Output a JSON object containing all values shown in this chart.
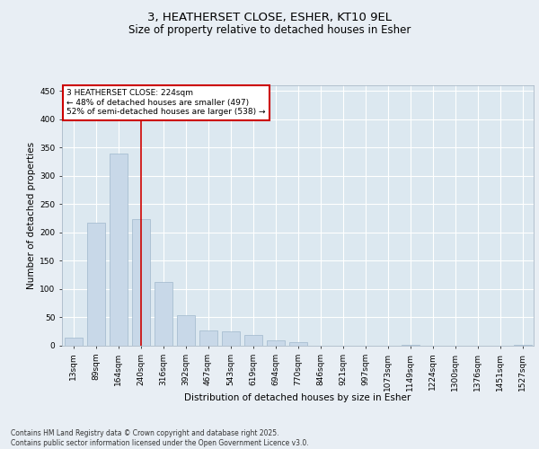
{
  "title_line1": "3, HEATHERSET CLOSE, ESHER, KT10 9EL",
  "title_line2": "Size of property relative to detached houses in Esher",
  "xlabel": "Distribution of detached houses by size in Esher",
  "ylabel": "Number of detached properties",
  "categories": [
    "13sqm",
    "89sqm",
    "164sqm",
    "240sqm",
    "316sqm",
    "392sqm",
    "467sqm",
    "543sqm",
    "619sqm",
    "694sqm",
    "770sqm",
    "846sqm",
    "921sqm",
    "997sqm",
    "1073sqm",
    "1149sqm",
    "1224sqm",
    "1300sqm",
    "1376sqm",
    "1451sqm",
    "1527sqm"
  ],
  "values": [
    15,
    217,
    340,
    224,
    113,
    54,
    27,
    26,
    19,
    9,
    6,
    0,
    0,
    0,
    0,
    2,
    0,
    0,
    0,
    0,
    2
  ],
  "bar_color": "#c8d8e8",
  "bar_edge_color": "#a0b8cc",
  "vline_x_index": 3,
  "vline_color": "#cc0000",
  "ylim": [
    0,
    460
  ],
  "yticks": [
    0,
    50,
    100,
    150,
    200,
    250,
    300,
    350,
    400,
    450
  ],
  "annotation_text": "3 HEATHERSET CLOSE: 224sqm\n← 48% of detached houses are smaller (497)\n52% of semi-detached houses are larger (538) →",
  "annotation_box_color": "#ffffff",
  "annotation_box_edge": "#cc0000",
  "footer_text": "Contains HM Land Registry data © Crown copyright and database right 2025.\nContains public sector information licensed under the Open Government Licence v3.0.",
  "background_color": "#e8eef4",
  "plot_bg_color": "#dce8f0",
  "grid_color": "#ffffff",
  "title_fontsize": 9.5,
  "subtitle_fontsize": 8.5,
  "axis_label_fontsize": 7.5,
  "tick_fontsize": 6.5,
  "annotation_fontsize": 6.5,
  "footer_fontsize": 5.5
}
